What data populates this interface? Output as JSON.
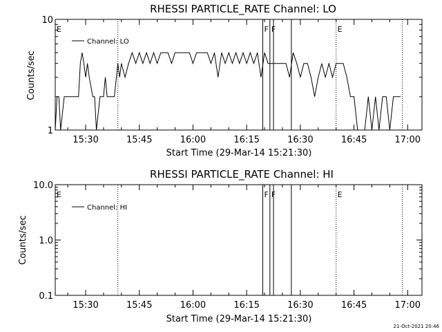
{
  "chart_data": [
    {
      "type": "line",
      "title": "RHESSI PARTICLE_RATE Channel: LO",
      "xlabel": "Start Time (29-Mar-14 15:21:30)",
      "ylabel": "Counts/sec",
      "y_scale": "log",
      "ylim": [
        1,
        10
      ],
      "y_ticks": [
        "1",
        "10"
      ],
      "xlim": [
        "15:21:30",
        "17:04:00"
      ],
      "x_ticks": [
        "15:30",
        "15:45",
        "16:00",
        "16:15",
        "16:30",
        "16:45",
        "17:00"
      ],
      "legend": {
        "placement": "top-left",
        "entries": [
          "Channel: LO"
        ]
      },
      "grid": false,
      "markers": [
        {
          "time": "15:21:30",
          "label": "E",
          "style": "dotted"
        },
        {
          "time": "15:39:00",
          "label": "",
          "style": "dotted"
        },
        {
          "time": "16:19:30",
          "label": "F",
          "style": "solid"
        },
        {
          "time": "16:21:30",
          "label": "F",
          "style": "solid"
        },
        {
          "time": "16:22:30",
          "label": "",
          "style": "solid"
        },
        {
          "time": "16:27:30",
          "label": "",
          "style": "solid"
        },
        {
          "time": "16:40:00",
          "label": "E",
          "style": "dotted"
        },
        {
          "time": "16:58:30",
          "label": "",
          "style": "dotted"
        }
      ],
      "series": [
        {
          "name": "Channel: LO",
          "x": [
            "15:21:30",
            "15:22:00",
            "15:22:30",
            "15:23:00",
            "15:24:00",
            "15:25:00",
            "15:26:00",
            "15:27:00",
            "15:28:00",
            "15:28:30",
            "15:29:00",
            "15:29:30",
            "15:30:00",
            "15:30:30",
            "15:31:00",
            "15:32:00",
            "15:32:30",
            "15:33:00",
            "15:34:00",
            "15:35:00",
            "15:35:30",
            "15:36:00",
            "15:37:00",
            "15:38:00",
            "15:39:00",
            "15:39:30",
            "15:40:00",
            "15:41:00",
            "15:42:00",
            "15:43:00",
            "15:44:00",
            "15:45:00",
            "15:46:00",
            "15:47:00",
            "15:48:00",
            "15:49:00",
            "15:50:00",
            "15:51:00",
            "15:52:00",
            "15:53:00",
            "15:54:00",
            "15:55:00",
            "15:56:00",
            "15:57:00",
            "15:58:00",
            "15:59:00",
            "16:00:00",
            "16:01:00",
            "16:02:00",
            "16:03:00",
            "16:04:00",
            "16:05:00",
            "16:06:00",
            "16:07:00",
            "16:08:00",
            "16:09:00",
            "16:10:00",
            "16:11:00",
            "16:12:00",
            "16:13:00",
            "16:14:00",
            "16:15:00",
            "16:16:00",
            "16:17:00",
            "16:18:00",
            "16:19:00",
            "16:20:00",
            "16:21:00",
            "16:22:00",
            "16:23:00",
            "16:24:00",
            "16:25:00",
            "16:26:00",
            "16:27:00",
            "16:28:00",
            "16:29:00",
            "16:30:00",
            "16:31:00",
            "16:32:00",
            "16:33:00",
            "16:34:00",
            "16:35:00",
            "16:36:00",
            "16:37:00",
            "16:38:00",
            "16:39:00",
            "16:40:00",
            "16:41:00",
            "16:42:00",
            "16:43:00",
            "16:44:00",
            "16:45:00",
            "16:46:00",
            "16:47:00",
            "16:48:00",
            "16:49:00",
            "16:50:00",
            "16:51:00",
            "16:52:00",
            "16:53:00",
            "16:54:00",
            "16:55:00",
            "16:56:00",
            "16:57:00",
            "16:58:00"
          ],
          "y": [
            1,
            2,
            2,
            1,
            2,
            2,
            2,
            2,
            2,
            4,
            5,
            4,
            3,
            4,
            3,
            2,
            2,
            1,
            2,
            2,
            3,
            2,
            2,
            2,
            4,
            3,
            4,
            3,
            4,
            5,
            4,
            5,
            4,
            5,
            4,
            5,
            4,
            5,
            5,
            5,
            4,
            5,
            5,
            5,
            5,
            5,
            4,
            5,
            5,
            5,
            5,
            4,
            5,
            3,
            5,
            4,
            5,
            4,
            5,
            4,
            5,
            4,
            5,
            4,
            5,
            3,
            5,
            4,
            4,
            4,
            4,
            4,
            4,
            3,
            5,
            4,
            3,
            4,
            4,
            3,
            2,
            3,
            4,
            3,
            4,
            3,
            4,
            4,
            4,
            3,
            2,
            2,
            1,
            1,
            1,
            2,
            1,
            2,
            1,
            2,
            2,
            1,
            2,
            2,
            2
          ]
        }
      ]
    },
    {
      "type": "line",
      "title": "RHESSI PARTICLE_RATE Channel: HI",
      "xlabel": "Start Time (29-Mar-14 15:21:30)",
      "ylabel": "Counts/sec",
      "y_scale": "log",
      "ylim": [
        0.1,
        10
      ],
      "y_ticks": [
        "0.1",
        "1.0",
        "10.0"
      ],
      "xlim": [
        "15:21:30",
        "17:04:00"
      ],
      "x_ticks": [
        "15:30",
        "15:45",
        "16:00",
        "16:15",
        "16:30",
        "16:45",
        "17:00"
      ],
      "legend": {
        "placement": "top-left",
        "entries": [
          "Channel: HI"
        ]
      },
      "grid": false,
      "markers": [
        {
          "time": "15:21:30",
          "label": "E",
          "style": "dotted"
        },
        {
          "time": "15:39:00",
          "label": "",
          "style": "dotted"
        },
        {
          "time": "16:19:30",
          "label": "F",
          "style": "solid"
        },
        {
          "time": "16:21:30",
          "label": "F",
          "style": "solid"
        },
        {
          "time": "16:22:30",
          "label": "",
          "style": "solid"
        },
        {
          "time": "16:27:30",
          "label": "",
          "style": "solid"
        },
        {
          "time": "16:40:00",
          "label": "E",
          "style": "dotted"
        },
        {
          "time": "16:58:30",
          "label": "",
          "style": "dotted"
        }
      ],
      "series": [
        {
          "name": "Channel: HI",
          "x": [],
          "y": []
        }
      ]
    }
  ],
  "footer": {
    "timestamp": "21-Oct-2021 20:46"
  }
}
